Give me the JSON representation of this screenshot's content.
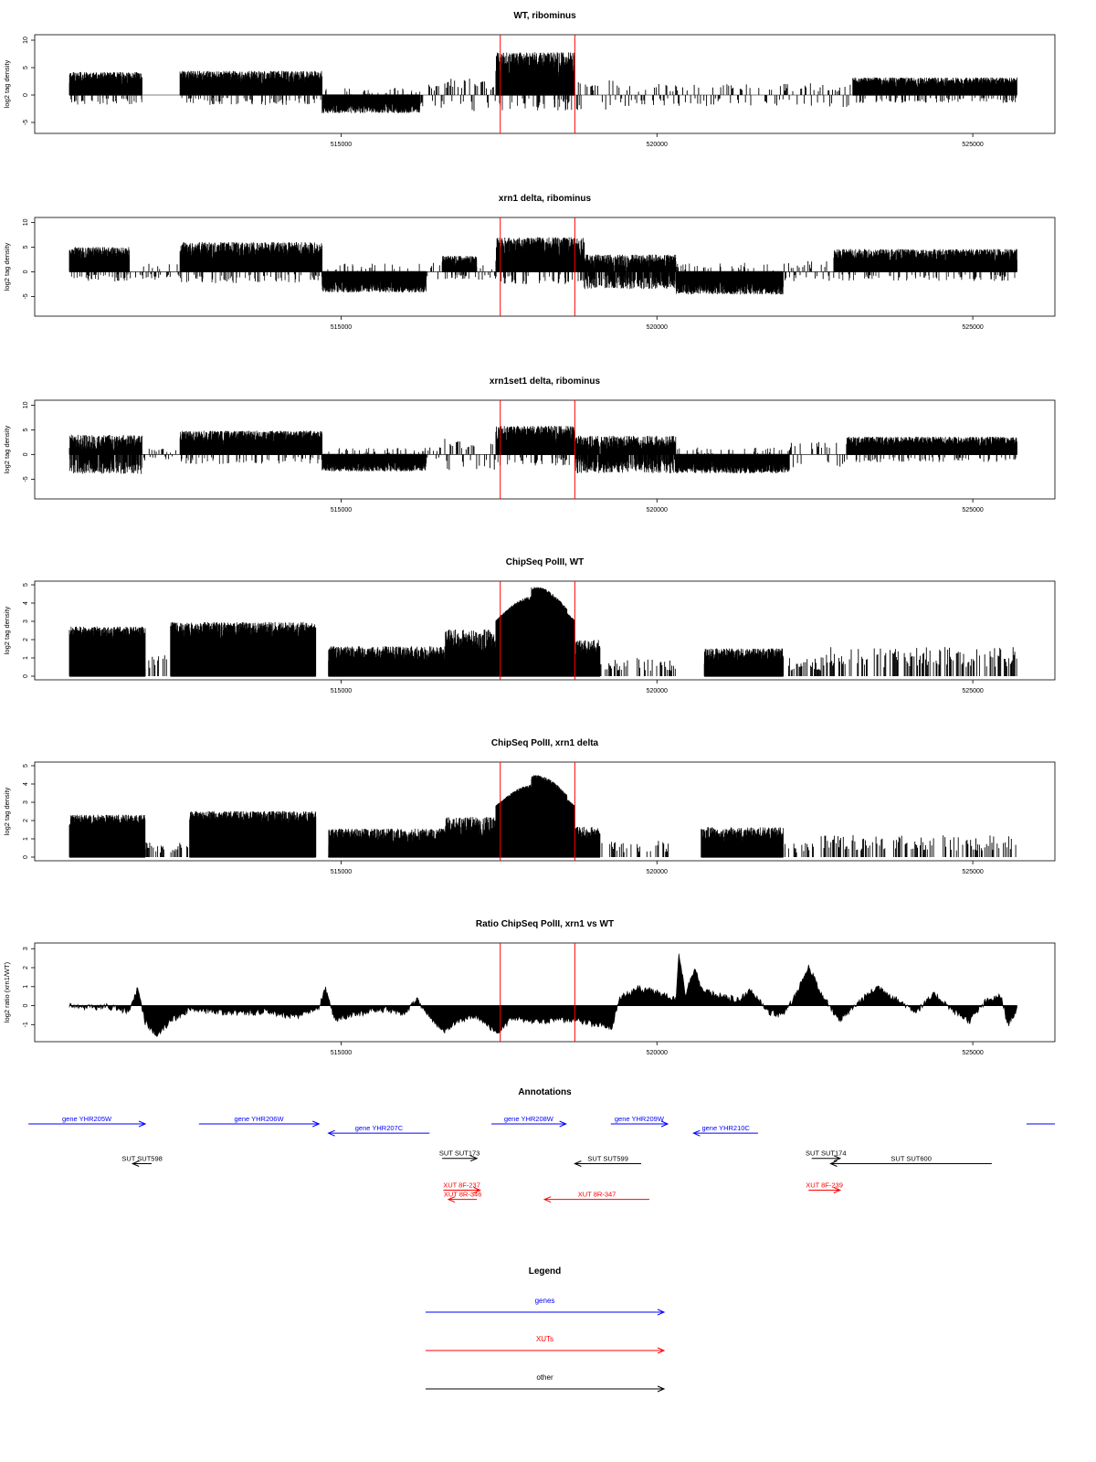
{
  "chart_data": {
    "type": "bar",
    "x_range": [
      510150,
      526300
    ],
    "x_ticks": [
      "515000",
      "520000",
      "525000"
    ],
    "highlight_region": {
      "start": 517520,
      "end": 518700,
      "color": "#ff0000"
    },
    "panels": [
      {
        "title": "WT, ribominus",
        "ylabel": "log2 tag density",
        "ylim": [
          -7,
          11
        ],
        "yticks": [
          "-5",
          "0",
          "5",
          "10"
        ],
        "segments": [
          {
            "start": 510700,
            "end": 511850,
            "type": "pos",
            "amp": 4.2
          },
          {
            "start": 511850,
            "end": 512450,
            "type": "empty",
            "amp": 0
          },
          {
            "start": 512450,
            "end": 514700,
            "type": "pos",
            "amp": 4.4
          },
          {
            "start": 514700,
            "end": 516250,
            "type": "neg",
            "amp": 3.3
          },
          {
            "start": 516250,
            "end": 516600,
            "type": "sparse",
            "amp": 2.4
          },
          {
            "start": 516600,
            "end": 517450,
            "type": "sparse",
            "amp": 3.0
          },
          {
            "start": 517450,
            "end": 518700,
            "type": "pos",
            "amp": 7.8
          },
          {
            "start": 518700,
            "end": 519400,
            "type": "sparse",
            "amp": 2.8
          },
          {
            "start": 519400,
            "end": 521800,
            "type": "sparse",
            "amp": 2.0
          },
          {
            "start": 521800,
            "end": 523100,
            "type": "sparse",
            "amp": 2.2
          },
          {
            "start": 523100,
            "end": 525700,
            "type": "pos",
            "amp": 3.2
          }
        ]
      },
      {
        "title": "xrn1 delta, ribominus",
        "ylabel": "log2 tag density",
        "ylim": [
          -9,
          11
        ],
        "yticks": [
          "-5",
          "0",
          "5",
          "10"
        ],
        "segments": [
          {
            "start": 510700,
            "end": 511650,
            "type": "pos",
            "amp": 5.0
          },
          {
            "start": 511650,
            "end": 512450,
            "type": "sparse",
            "amp": 1.6
          },
          {
            "start": 512450,
            "end": 514700,
            "type": "pos",
            "amp": 6.0
          },
          {
            "start": 514700,
            "end": 516350,
            "type": "neg",
            "amp": 4.2
          },
          {
            "start": 516350,
            "end": 516600,
            "type": "sparse",
            "amp": 2.0
          },
          {
            "start": 516600,
            "end": 517150,
            "type": "pos",
            "amp": 3.2
          },
          {
            "start": 517150,
            "end": 517450,
            "type": "sparse",
            "amp": 1.6
          },
          {
            "start": 517450,
            "end": 518850,
            "type": "pos",
            "amp": 7.0
          },
          {
            "start": 518850,
            "end": 520300,
            "type": "both",
            "amp": 3.5
          },
          {
            "start": 520300,
            "end": 522000,
            "type": "neg",
            "amp": 4.6
          },
          {
            "start": 522000,
            "end": 522800,
            "type": "sparse",
            "amp": 2.2
          },
          {
            "start": 522800,
            "end": 525700,
            "type": "pos",
            "amp": 4.6
          }
        ]
      },
      {
        "title": "xrn1set1 delta, ribominus",
        "ylabel": "log2 tag density",
        "ylim": [
          -9,
          11
        ],
        "yticks": [
          "-5",
          "0",
          "5",
          "10"
        ],
        "segments": [
          {
            "start": 510700,
            "end": 511850,
            "type": "both",
            "amp": 4.0
          },
          {
            "start": 511850,
            "end": 512450,
            "type": "sparse",
            "amp": 1.2
          },
          {
            "start": 512450,
            "end": 514700,
            "type": "pos",
            "amp": 4.8
          },
          {
            "start": 514700,
            "end": 516350,
            "type": "neg",
            "amp": 3.4
          },
          {
            "start": 516350,
            "end": 516600,
            "type": "sparse",
            "amp": 1.6
          },
          {
            "start": 516600,
            "end": 517450,
            "type": "sparse",
            "amp": 3.2
          },
          {
            "start": 517450,
            "end": 518700,
            "type": "pos",
            "amp": 5.8
          },
          {
            "start": 518700,
            "end": 520300,
            "type": "both",
            "amp": 3.8
          },
          {
            "start": 520300,
            "end": 522100,
            "type": "neg",
            "amp": 3.8
          },
          {
            "start": 522100,
            "end": 523000,
            "type": "sparse",
            "amp": 2.8
          },
          {
            "start": 523000,
            "end": 525700,
            "type": "pos",
            "amp": 3.6
          }
        ]
      },
      {
        "title": "ChipSeq PolII, WT",
        "ylabel": "log2 tag density",
        "ylim": [
          -0.2,
          5.2
        ],
        "yticks": [
          "0",
          "1",
          "2",
          "3",
          "4",
          "5"
        ],
        "segments": [
          {
            "start": 510700,
            "end": 511900,
            "type": "dense",
            "amp": 2.6,
            "base": 2.0
          },
          {
            "start": 511900,
            "end": 512300,
            "type": "sparse",
            "amp": 1.2
          },
          {
            "start": 512300,
            "end": 514600,
            "type": "dense",
            "amp": 2.8,
            "base": 2.0
          },
          {
            "start": 514600,
            "end": 514800,
            "type": "empty",
            "amp": 0
          },
          {
            "start": 514800,
            "end": 516650,
            "type": "dense",
            "amp": 1.5,
            "base": 0.8
          },
          {
            "start": 516650,
            "end": 517450,
            "type": "dense",
            "amp": 2.3,
            "base": 1.0
          },
          {
            "start": 517450,
            "end": 518700,
            "type": "hump",
            "amp": 4.4,
            "base": 2.8
          },
          {
            "start": 518700,
            "end": 519100,
            "type": "dense",
            "amp": 1.8,
            "base": 0.9
          },
          {
            "start": 519100,
            "end": 520300,
            "type": "sparse",
            "amp": 1.0
          },
          {
            "start": 520300,
            "end": 520750,
            "type": "empty",
            "amp": 0
          },
          {
            "start": 520750,
            "end": 522000,
            "type": "dense",
            "amp": 1.4,
            "base": 0.8
          },
          {
            "start": 522000,
            "end": 522600,
            "type": "sparse",
            "amp": 1.0
          },
          {
            "start": 522600,
            "end": 525700,
            "type": "sparse",
            "amp": 1.6
          }
        ]
      },
      {
        "title": "ChipSeq PolII, xrn1 delta",
        "ylabel": "log2 tag density",
        "ylim": [
          -0.2,
          5.2
        ],
        "yticks": [
          "0",
          "1",
          "2",
          "3",
          "4",
          "5"
        ],
        "segments": [
          {
            "start": 510700,
            "end": 511900,
            "type": "dense",
            "amp": 2.2,
            "base": 1.6
          },
          {
            "start": 511900,
            "end": 512600,
            "type": "sparse",
            "amp": 0.8
          },
          {
            "start": 512600,
            "end": 514600,
            "type": "dense",
            "amp": 2.4,
            "base": 1.8
          },
          {
            "start": 514600,
            "end": 514800,
            "type": "empty",
            "amp": 0
          },
          {
            "start": 514800,
            "end": 516650,
            "type": "dense",
            "amp": 1.4,
            "base": 0.6
          },
          {
            "start": 516650,
            "end": 517450,
            "type": "dense",
            "amp": 2.0,
            "base": 1.0
          },
          {
            "start": 517450,
            "end": 518700,
            "type": "hump",
            "amp": 4.0,
            "base": 2.6
          },
          {
            "start": 518700,
            "end": 519100,
            "type": "dense",
            "amp": 1.5,
            "base": 0.7
          },
          {
            "start": 519100,
            "end": 520200,
            "type": "sparse",
            "amp": 0.9
          },
          {
            "start": 520200,
            "end": 520700,
            "type": "empty",
            "amp": 0
          },
          {
            "start": 520700,
            "end": 522000,
            "type": "dense",
            "amp": 1.5,
            "base": 0.8
          },
          {
            "start": 522000,
            "end": 522600,
            "type": "sparse",
            "amp": 0.8
          },
          {
            "start": 522600,
            "end": 525700,
            "type": "sparse",
            "amp": 1.2
          }
        ]
      },
      {
        "title": "Ratio ChipSeq PolII, xrn1 vs WT",
        "ylabel": "log2 ratio (xrn1/WT)",
        "ylim": [
          -1.9,
          3.3
        ],
        "yticks": [
          "-1",
          "0",
          "1",
          "2",
          "3"
        ],
        "ratio_profile": [
          [
            510700,
            0.05
          ],
          [
            511000,
            -0.1
          ],
          [
            511300,
            -0.05
          ],
          [
            511650,
            -0.3
          ],
          [
            511780,
            0.9
          ],
          [
            511900,
            -0.9
          ],
          [
            512100,
            -1.6
          ],
          [
            512300,
            -0.8
          ],
          [
            512600,
            -0.2
          ],
          [
            513000,
            -0.3
          ],
          [
            513400,
            -0.4
          ],
          [
            513800,
            -0.3
          ],
          [
            514300,
            -0.6
          ],
          [
            514650,
            -0.1
          ],
          [
            514750,
            0.9
          ],
          [
            514900,
            -0.7
          ],
          [
            515300,
            -0.4
          ],
          [
            515700,
            -0.2
          ],
          [
            516000,
            -0.4
          ],
          [
            516200,
            0.3
          ],
          [
            516600,
            -1.4
          ],
          [
            516800,
            -0.9
          ],
          [
            517100,
            -0.5
          ],
          [
            517500,
            -1.5
          ],
          [
            517700,
            -0.6
          ],
          [
            518000,
            -0.8
          ],
          [
            518300,
            -0.8
          ],
          [
            518700,
            -0.7
          ],
          [
            519000,
            -1.0
          ],
          [
            519300,
            -1.1
          ],
          [
            519400,
            0.4
          ],
          [
            519700,
            0.9
          ],
          [
            520000,
            0.7
          ],
          [
            520300,
            0.3
          ],
          [
            520350,
            2.8
          ],
          [
            520450,
            0.6
          ],
          [
            520600,
            2.0
          ],
          [
            520700,
            0.8
          ],
          [
            521000,
            0.5
          ],
          [
            521300,
            0.3
          ],
          [
            521500,
            0.8
          ],
          [
            521800,
            -0.4
          ],
          [
            522000,
            -0.5
          ],
          [
            522200,
            0.6
          ],
          [
            522400,
            2.1
          ],
          [
            522600,
            0.6
          ],
          [
            522900,
            -0.8
          ],
          [
            523200,
            0.2
          ],
          [
            523500,
            1.0
          ],
          [
            523800,
            0.3
          ],
          [
            524100,
            -0.3
          ],
          [
            524400,
            0.6
          ],
          [
            524700,
            -0.3
          ],
          [
            524950,
            -0.8
          ],
          [
            525200,
            0.2
          ],
          [
            525450,
            0.5
          ],
          [
            525550,
            -1.0
          ],
          [
            525700,
            -0.2
          ]
        ]
      }
    ],
    "annotations": {
      "title": "Annotations",
      "features": [
        {
          "label": "gene YHR205W",
          "color": "#0000ff",
          "start": 510050,
          "end": 511900,
          "dir": "right",
          "row": 0
        },
        {
          "label": "gene YHR206W",
          "color": "#0000ff",
          "start": 512750,
          "end": 514650,
          "dir": "right",
          "row": 0
        },
        {
          "label": "gene YHR207C",
          "color": "#0000ff",
          "start": 514800,
          "end": 516400,
          "dir": "left",
          "row": 0.7
        },
        {
          "label": "gene YHR208W",
          "color": "#0000ff",
          "start": 517380,
          "end": 518560,
          "dir": "right",
          "row": 0
        },
        {
          "label": "gene YHR209W",
          "color": "#0000ff",
          "start": 519270,
          "end": 520170,
          "dir": "right",
          "row": 0
        },
        {
          "label": "gene YHR210C",
          "color": "#0000ff",
          "start": 520580,
          "end": 521600,
          "dir": "left",
          "row": 0.7
        },
        {
          "label": "",
          "color": "#0000ff",
          "start": 525850,
          "end": 526300,
          "dir": "none",
          "row": 0
        },
        {
          "label": "SUT SUT598",
          "color": "#000000",
          "start": 511700,
          "end": 512000,
          "dir": "left",
          "row": 3
        },
        {
          "label": "SUT SUT173",
          "color": "#000000",
          "start": 516600,
          "end": 517150,
          "dir": "right",
          "row": 2.6
        },
        {
          "label": "SUT SUT599",
          "color": "#000000",
          "start": 518700,
          "end": 519750,
          "dir": "left",
          "row": 3
        },
        {
          "label": "SUT SUT174",
          "color": "#000000",
          "start": 522450,
          "end": 522900,
          "dir": "right",
          "row": 2.6
        },
        {
          "label": "SUT SUT600",
          "color": "#000000",
          "start": 522750,
          "end": 525300,
          "dir": "left",
          "row": 3
        },
        {
          "label": "XUT 8F-237",
          "color": "#ff0000",
          "start": 516620,
          "end": 517200,
          "dir": "right",
          "row": 5
        },
        {
          "label": "XUT 8R-346",
          "color": "#ff0000",
          "start": 516700,
          "end": 517150,
          "dir": "left",
          "row": 5.7
        },
        {
          "label": "XUT 8R-347",
          "color": "#ff0000",
          "start": 518220,
          "end": 519880,
          "dir": "left",
          "row": 5.7
        },
        {
          "label": "XUT 8F-239",
          "color": "#ff0000",
          "start": 522400,
          "end": 522900,
          "dir": "right",
          "row": 5
        }
      ]
    },
    "legend": {
      "title": "Legend",
      "items": [
        {
          "label": "genes",
          "color": "#0000ff"
        },
        {
          "label": "XUTs",
          "color": "#ff0000"
        },
        {
          "label": "other",
          "color": "#000000"
        }
      ]
    }
  }
}
